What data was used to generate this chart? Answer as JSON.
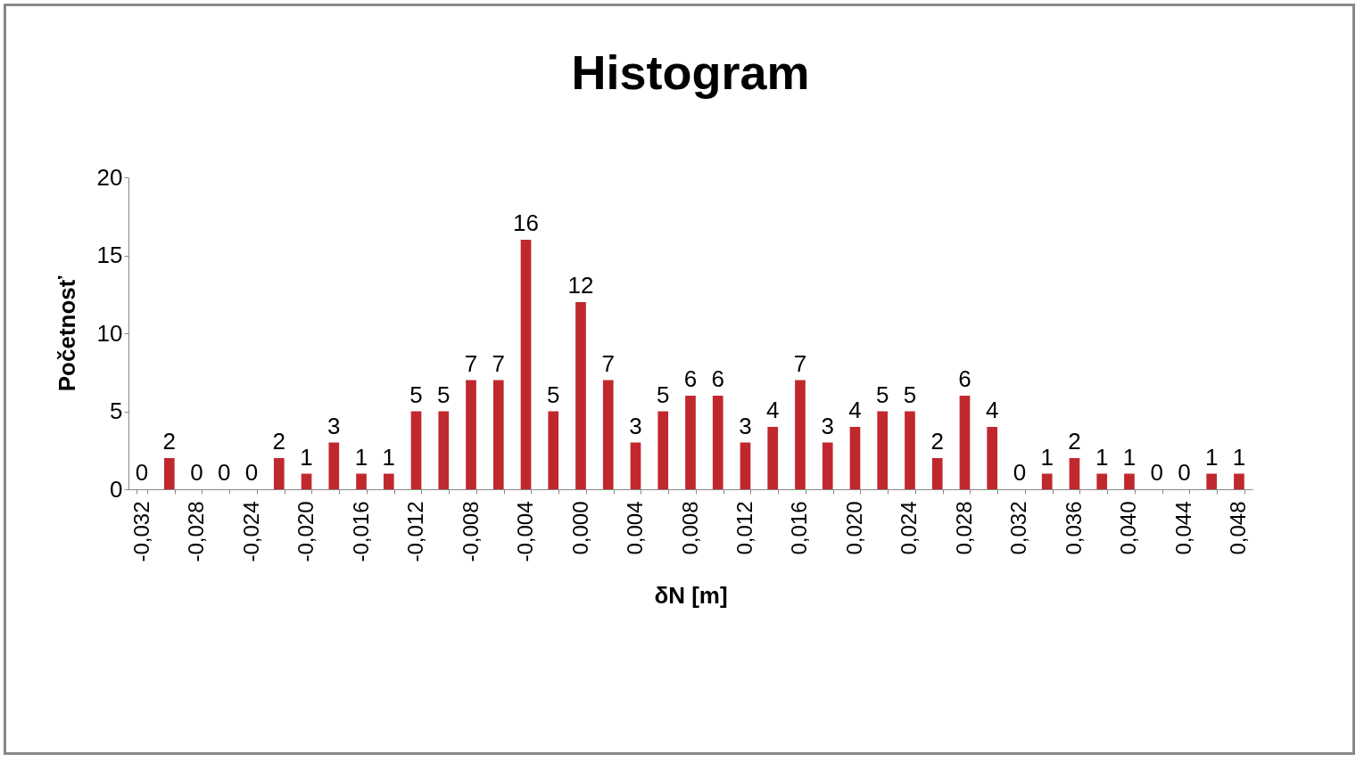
{
  "chart_data": {
    "type": "bar",
    "title": "Histogram",
    "xlabel": "δN [m]",
    "ylabel": "Početnosť",
    "categories": [
      "-0,032",
      null,
      "-0,028",
      null,
      "-0,024",
      null,
      "-0,020",
      null,
      "-0,016",
      null,
      "-0,012",
      null,
      "-0,008",
      null,
      "-0,004",
      null,
      "0,000",
      null,
      "0,004",
      null,
      "0,008",
      null,
      "0,012",
      null,
      "0,016",
      null,
      "0,020",
      null,
      "0,024",
      null,
      "0,028",
      null,
      "0,032",
      null,
      "0,036",
      null,
      "0,040",
      null,
      "0,044",
      null,
      "0,048"
    ],
    "values": [
      0,
      2,
      0,
      0,
      0,
      2,
      1,
      3,
      1,
      1,
      5,
      5,
      7,
      7,
      16,
      5,
      12,
      7,
      3,
      5,
      6,
      6,
      3,
      4,
      7,
      3,
      4,
      5,
      5,
      2,
      6,
      4,
      0,
      1,
      2,
      1,
      1,
      0,
      0,
      1,
      1
    ],
    "color": "#c0282d",
    "ylim": [
      0,
      20
    ],
    "yticks": [
      0,
      5,
      10,
      15,
      20
    ],
    "grid": false,
    "data_labels": true
  }
}
